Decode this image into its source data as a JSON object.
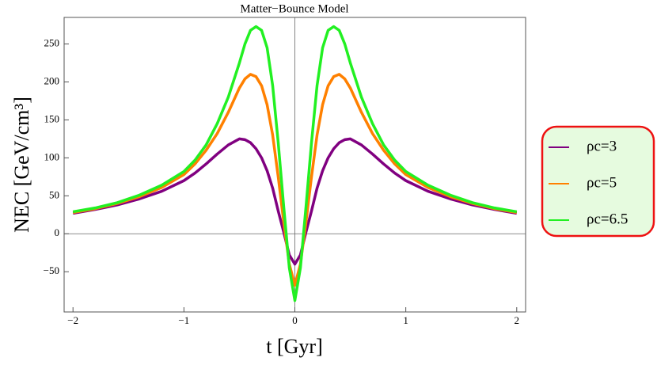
{
  "chart_data": {
    "type": "line",
    "title": "Matter−Bounce Model",
    "x_label": "t [Gyr]",
    "y_label": "NEC [GeV/cm³]",
    "x": [
      -2,
      -1.8,
      -1.6,
      -1.4,
      -1.2,
      -1,
      -0.9,
      -0.8,
      -0.7,
      -0.6,
      -0.5,
      -0.45,
      -0.4,
      -0.35,
      -0.3,
      -0.25,
      -0.2,
      -0.15,
      -0.1,
      -0.05,
      0,
      0.05,
      0.1,
      0.15,
      0.2,
      0.25,
      0.3,
      0.35,
      0.4,
      0.45,
      0.5,
      0.6,
      0.7,
      0.8,
      0.9,
      1,
      1.2,
      1.4,
      1.6,
      1.8,
      2
    ],
    "series": [
      {
        "name": "ρc=3",
        "color": "#800080",
        "values": [
          27,
          32,
          38,
          46,
          56,
          70,
          80,
          92,
          105,
          117,
          125,
          124,
          120,
          112,
          100,
          83,
          60,
          30,
          2,
          -28,
          -40,
          -28,
          2,
          30,
          60,
          83,
          100,
          112,
          120,
          124,
          125,
          117,
          105,
          92,
          80,
          70,
          56,
          46,
          38,
          32,
          27
        ]
      },
      {
        "name": "ρc=5",
        "color": "#ff8000",
        "values": [
          28,
          33,
          40,
          49,
          61,
          78,
          92,
          110,
          132,
          160,
          192,
          204,
          210,
          207,
          195,
          170,
          130,
          75,
          15,
          -40,
          -68,
          -40,
          15,
          75,
          130,
          170,
          195,
          207,
          210,
          204,
          192,
          160,
          132,
          110,
          92,
          78,
          61,
          49,
          40,
          33,
          28
        ]
      },
      {
        "name": "ρc=6.5",
        "color": "#22f022",
        "values": [
          29,
          34,
          41,
          51,
          64,
          82,
          97,
          117,
          145,
          180,
          225,
          250,
          268,
          273,
          268,
          245,
          195,
          120,
          35,
          -45,
          -88,
          -45,
          35,
          120,
          195,
          245,
          268,
          273,
          268,
          250,
          225,
          180,
          145,
          117,
          97,
          82,
          64,
          51,
          41,
          34,
          29
        ]
      }
    ],
    "xlim": [
      -2.08,
      2.08
    ],
    "ylim": [
      -103,
      285
    ],
    "xticks": [
      {
        "value": -2,
        "label": "−2"
      },
      {
        "value": -1,
        "label": "−1"
      },
      0,
      1,
      2
    ],
    "yticks": [
      {
        "value": -50,
        "label": "−50"
      },
      0,
      50,
      100,
      150,
      200,
      250
    ],
    "legend": "right"
  }
}
